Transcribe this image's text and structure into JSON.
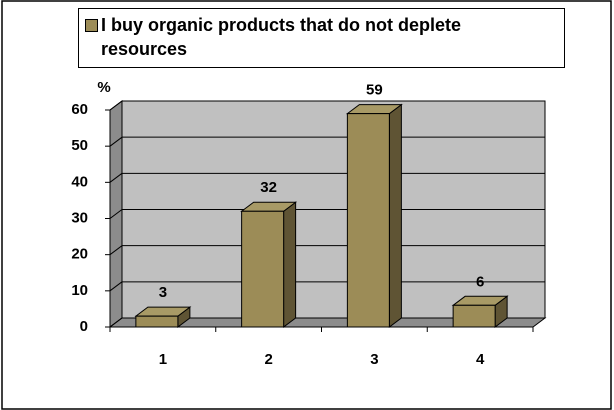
{
  "chart_data": {
    "type": "bar3d",
    "title": "I buy organic products that do not deplete resources",
    "y_label": "%",
    "categories": [
      "1",
      "2",
      "3",
      "4"
    ],
    "values": [
      3,
      32,
      59,
      6
    ],
    "color": "#9c8c57",
    "ylim": [
      0,
      60
    ],
    "yticks": [
      0,
      10,
      20,
      30,
      40,
      50,
      60
    ],
    "grid": true
  }
}
